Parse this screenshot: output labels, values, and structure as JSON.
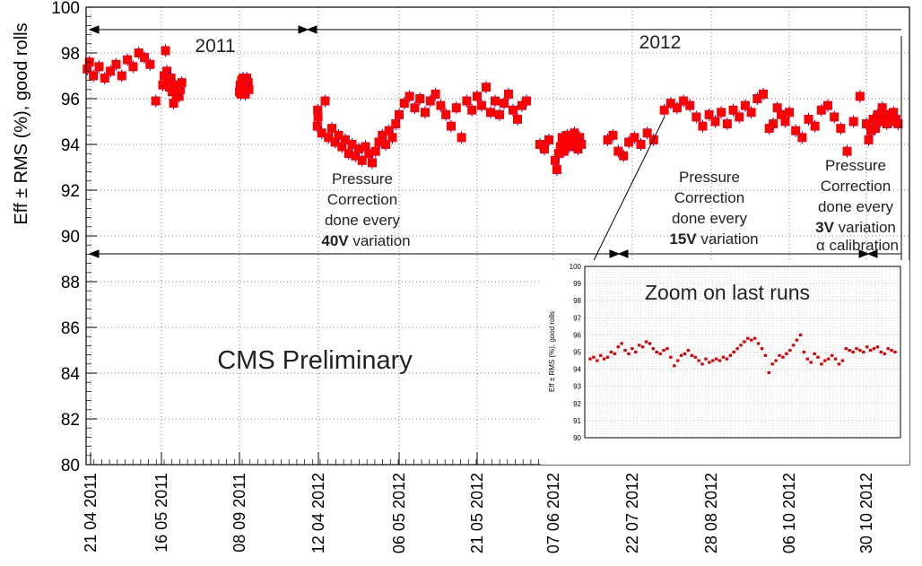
{
  "chart_data": {
    "type": "scatter",
    "title": "",
    "ylabel": "Eff ± RMS (%), good rolls",
    "xlabel": "",
    "ylim": [
      80,
      100
    ],
    "yticks": [
      80,
      82,
      84,
      86,
      88,
      90,
      92,
      94,
      96,
      98,
      100
    ],
    "x_is_date": true,
    "xlim": [
      "2011-04-17",
      "2012-12-07"
    ],
    "xtick_labels": [
      {
        "date": "2011-04-21",
        "label": "21 04 2011"
      },
      {
        "date": "2011-05-16",
        "label": "16 05 2011"
      },
      {
        "date": "2011-09-08",
        "label": "08 09 2011"
      },
      {
        "date": "2012-04-12",
        "label": "12 04 2012"
      },
      {
        "date": "2012-05-06",
        "label": "06 05 2012"
      },
      {
        "date": "2012-05-21",
        "label": "21 05 2012"
      },
      {
        "date": "2012-06-07",
        "label": "07 06 2012"
      },
      {
        "date": "2012-07-22",
        "label": "22 07 2012"
      },
      {
        "date": "2012-08-28",
        "label": "28 08 2012"
      },
      {
        "date": "2012-10-06",
        "label": "06 10 2012"
      },
      {
        "date": "2012-10-30",
        "label": "30 10 2012"
      }
    ],
    "grid": true,
    "marker_color": "#ff0000",
    "errorbar_color": "#0000ff",
    "series": [
      {
        "values": [
          {
            "x": "2011-04-18",
            "y": 97.3
          },
          {
            "x": "2011-04-20",
            "y": 97.6
          },
          {
            "x": "2011-04-22",
            "y": 97.0
          },
          {
            "x": "2011-04-24",
            "y": 97.4
          },
          {
            "x": "2011-04-26",
            "y": 96.9
          },
          {
            "x": "2011-04-28",
            "y": 97.2
          },
          {
            "x": "2011-04-30",
            "y": 97.5
          },
          {
            "x": "2011-05-02",
            "y": 97.0
          },
          {
            "x": "2011-05-04",
            "y": 97.7
          },
          {
            "x": "2011-05-06",
            "y": 97.4
          },
          {
            "x": "2011-05-08",
            "y": 98.0
          },
          {
            "x": "2011-05-10",
            "y": 97.8
          },
          {
            "x": "2011-05-12",
            "y": 97.5
          },
          {
            "x": "2011-05-14",
            "y": 95.9
          },
          {
            "x": "2011-05-18",
            "y": 96.6
          },
          {
            "x": "2011-05-20",
            "y": 97.0
          },
          {
            "x": "2011-05-22",
            "y": 98.1
          },
          {
            "x": "2011-05-24",
            "y": 97.2
          },
          {
            "x": "2011-05-26",
            "y": 96.9
          },
          {
            "x": "2011-05-28",
            "y": 96.5
          },
          {
            "x": "2011-05-30",
            "y": 96.9
          },
          {
            "x": "2011-06-01",
            "y": 96.3
          },
          {
            "x": "2011-06-03",
            "y": 95.8
          },
          {
            "x": "2011-06-05",
            "y": 96.6
          },
          {
            "x": "2011-06-07",
            "y": 96.2
          },
          {
            "x": "2011-06-09",
            "y": 96.5
          },
          {
            "x": "2011-06-11",
            "y": 96.1
          },
          {
            "x": "2011-06-13",
            "y": 96.4
          },
          {
            "x": "2011-06-15",
            "y": 96.7
          },
          {
            "x": "2011-09-08",
            "y": 96.3
          },
          {
            "x": "2011-09-10",
            "y": 96.6
          },
          {
            "x": "2011-09-12",
            "y": 96.2
          },
          {
            "x": "2011-09-14",
            "y": 96.8
          },
          {
            "x": "2011-09-16",
            "y": 96.5
          },
          {
            "x": "2011-09-18",
            "y": 96.9
          },
          {
            "x": "2011-09-20",
            "y": 96.4
          },
          {
            "x": "2011-09-22",
            "y": 96.7
          },
          {
            "x": "2011-09-24",
            "y": 96.2
          },
          {
            "x": "2011-09-26",
            "y": 96.6
          },
          {
            "x": "2011-09-28",
            "y": 96.9
          },
          {
            "x": "2011-09-30",
            "y": 96.5
          },
          {
            "x": "2011-10-02",
            "y": 96.7
          },
          {
            "x": "2011-10-04",
            "y": 96.4
          },
          {
            "x": "2012-04-09",
            "y": 94.8
          },
          {
            "x": "2012-04-10",
            "y": 95.5
          },
          {
            "x": "2012-04-11",
            "y": 95.2
          },
          {
            "x": "2012-04-13",
            "y": 94.5
          },
          {
            "x": "2012-04-14",
            "y": 95.9
          },
          {
            "x": "2012-04-15",
            "y": 94.3
          },
          {
            "x": "2012-04-16",
            "y": 94.7
          },
          {
            "x": "2012-04-17",
            "y": 94.1
          },
          {
            "x": "2012-04-18",
            "y": 94.4
          },
          {
            "x": "2012-04-19",
            "y": 93.9
          },
          {
            "x": "2012-04-20",
            "y": 94.2
          },
          {
            "x": "2012-04-21",
            "y": 93.6
          },
          {
            "x": "2012-04-22",
            "y": 94.0
          },
          {
            "x": "2012-04-23",
            "y": 93.5
          },
          {
            "x": "2012-04-24",
            "y": 93.8
          },
          {
            "x": "2012-04-25",
            "y": 93.3
          },
          {
            "x": "2012-04-26",
            "y": 93.9
          },
          {
            "x": "2012-04-27",
            "y": 93.6
          },
          {
            "x": "2012-04-28",
            "y": 93.2
          },
          {
            "x": "2012-04-29",
            "y": 93.7
          },
          {
            "x": "2012-04-30",
            "y": 94.1
          },
          {
            "x": "2012-05-01",
            "y": 94.4
          },
          {
            "x": "2012-05-02",
            "y": 94.0
          },
          {
            "x": "2012-05-03",
            "y": 94.6
          },
          {
            "x": "2012-05-04",
            "y": 94.3
          },
          {
            "x": "2012-05-05",
            "y": 94.9
          },
          {
            "x": "2012-05-06",
            "y": 95.3
          },
          {
            "x": "2012-05-07",
            "y": 95.8
          },
          {
            "x": "2012-05-08",
            "y": 96.1
          },
          {
            "x": "2012-05-09",
            "y": 95.6
          },
          {
            "x": "2012-05-10",
            "y": 96.0
          },
          {
            "x": "2012-05-11",
            "y": 95.4
          },
          {
            "x": "2012-05-12",
            "y": 95.9
          },
          {
            "x": "2012-05-13",
            "y": 96.2
          },
          {
            "x": "2012-05-14",
            "y": 95.7
          },
          {
            "x": "2012-05-15",
            "y": 95.3
          },
          {
            "x": "2012-05-16",
            "y": 94.8
          },
          {
            "x": "2012-05-17",
            "y": 95.6
          },
          {
            "x": "2012-05-18",
            "y": 94.3
          },
          {
            "x": "2012-05-19",
            "y": 95.9
          },
          {
            "x": "2012-05-20",
            "y": 95.5
          },
          {
            "x": "2012-05-21",
            "y": 96.1
          },
          {
            "x": "2012-05-22",
            "y": 95.7
          },
          {
            "x": "2012-05-23",
            "y": 96.5
          },
          {
            "x": "2012-05-24",
            "y": 95.4
          },
          {
            "x": "2012-05-25",
            "y": 95.9
          },
          {
            "x": "2012-05-26",
            "y": 95.3
          },
          {
            "x": "2012-05-27",
            "y": 95.8
          },
          {
            "x": "2012-05-28",
            "y": 96.2
          },
          {
            "x": "2012-05-29",
            "y": 95.5
          },
          {
            "x": "2012-05-30",
            "y": 95.1
          },
          {
            "x": "2012-05-31",
            "y": 95.7
          },
          {
            "x": "2012-06-01",
            "y": 95.9
          },
          {
            "x": "2012-06-04",
            "y": 94.0
          },
          {
            "x": "2012-06-05",
            "y": 93.8
          },
          {
            "x": "2012-06-06",
            "y": 94.2
          },
          {
            "x": "2012-06-08",
            "y": 93.3
          },
          {
            "x": "2012-06-09",
            "y": 92.9
          },
          {
            "x": "2012-06-10",
            "y": 93.6
          },
          {
            "x": "2012-06-11",
            "y": 93.9
          },
          {
            "x": "2012-06-12",
            "y": 94.3
          },
          {
            "x": "2012-06-13",
            "y": 93.7
          },
          {
            "x": "2012-06-14",
            "y": 94.1
          },
          {
            "x": "2012-06-15",
            "y": 94.4
          },
          {
            "x": "2012-06-16",
            "y": 93.9
          },
          {
            "x": "2012-06-17",
            "y": 94.2
          },
          {
            "x": "2012-06-18",
            "y": 94.0
          },
          {
            "x": "2012-06-19",
            "y": 94.5
          },
          {
            "x": "2012-06-20",
            "y": 94.1
          },
          {
            "x": "2012-06-21",
            "y": 93.8
          },
          {
            "x": "2012-06-22",
            "y": 94.3
          },
          {
            "x": "2012-06-23",
            "y": 94.0
          },
          {
            "x": "2012-07-08",
            "y": 94.2
          },
          {
            "x": "2012-07-11",
            "y": 94.4
          },
          {
            "x": "2012-07-14",
            "y": 93.7
          },
          {
            "x": "2012-07-17",
            "y": 93.5
          },
          {
            "x": "2012-07-20",
            "y": 94.1
          },
          {
            "x": "2012-07-23",
            "y": 94.3
          },
          {
            "x": "2012-07-26",
            "y": 94.0
          },
          {
            "x": "2012-07-29",
            "y": 94.5
          },
          {
            "x": "2012-08-01",
            "y": 94.2
          },
          {
            "x": "2012-08-06",
            "y": 95.5
          },
          {
            "x": "2012-08-09",
            "y": 95.8
          },
          {
            "x": "2012-08-12",
            "y": 95.6
          },
          {
            "x": "2012-08-15",
            "y": 95.9
          },
          {
            "x": "2012-08-18",
            "y": 95.7
          },
          {
            "x": "2012-08-21",
            "y": 95.2
          },
          {
            "x": "2012-08-24",
            "y": 94.8
          },
          {
            "x": "2012-08-27",
            "y": 95.3
          },
          {
            "x": "2012-08-30",
            "y": 95.0
          },
          {
            "x": "2012-09-02",
            "y": 95.4
          },
          {
            "x": "2012-09-05",
            "y": 94.9
          },
          {
            "x": "2012-09-08",
            "y": 95.5
          },
          {
            "x": "2012-09-11",
            "y": 95.2
          },
          {
            "x": "2012-09-14",
            "y": 95.7
          },
          {
            "x": "2012-09-17",
            "y": 95.4
          },
          {
            "x": "2012-09-20",
            "y": 96.0
          },
          {
            "x": "2012-09-23",
            "y": 96.2
          },
          {
            "x": "2012-09-26",
            "y": 94.7
          },
          {
            "x": "2012-09-28",
            "y": 94.9
          },
          {
            "x": "2012-09-30",
            "y": 95.6
          },
          {
            "x": "2012-10-02",
            "y": 95.3
          },
          {
            "x": "2012-10-04",
            "y": 95.0
          },
          {
            "x": "2012-10-06",
            "y": 95.4
          },
          {
            "x": "2012-10-08",
            "y": 94.6
          },
          {
            "x": "2012-10-10",
            "y": 94.3
          },
          {
            "x": "2012-10-12",
            "y": 95.1
          },
          {
            "x": "2012-10-14",
            "y": 94.8
          },
          {
            "x": "2012-10-16",
            "y": 95.5
          },
          {
            "x": "2012-10-18",
            "y": 95.7
          },
          {
            "x": "2012-10-20",
            "y": 95.2
          },
          {
            "x": "2012-10-22",
            "y": 94.7
          },
          {
            "x": "2012-10-24",
            "y": 93.7
          },
          {
            "x": "2012-10-26",
            "y": 95.0
          },
          {
            "x": "2012-10-28",
            "y": 96.1
          },
          {
            "x": "2012-10-30",
            "y": 94.9
          },
          {
            "x": "2012-11-01",
            "y": 94.2
          },
          {
            "x": "2012-11-03",
            "y": 94.6
          },
          {
            "x": "2012-11-05",
            "y": 95.1
          },
          {
            "x": "2012-11-07",
            "y": 94.7
          },
          {
            "x": "2012-11-09",
            "y": 95.3
          },
          {
            "x": "2012-11-11",
            "y": 95.0
          },
          {
            "x": "2012-11-13",
            "y": 95.6
          },
          {
            "x": "2012-11-15",
            "y": 95.2
          },
          {
            "x": "2012-11-17",
            "y": 94.9
          },
          {
            "x": "2012-11-19",
            "y": 95.3
          },
          {
            "x": "2012-11-21",
            "y": 95.0
          },
          {
            "x": "2012-11-23",
            "y": 95.4
          },
          {
            "x": "2012-11-25",
            "y": 95.1
          },
          {
            "x": "2012-11-27",
            "y": 94.9
          }
        ]
      }
    ],
    "annotations": {
      "year_2011": "2011",
      "year_2012": "2012",
      "period1_line1": "Pressure",
      "period1_line2": "Correction",
      "period1_line3": "done every",
      "period1_bold": "40V",
      "period1_suffix": " variation",
      "period2_line1": "Pressure",
      "period2_line2": "Correction",
      "period2_line3": "done every",
      "period2_bold": "15V",
      "period2_suffix": " variation",
      "period3_line1": "Pressure",
      "period3_line2": "Correction",
      "period3_line3": "done every",
      "period3_bold": "3V",
      "period3_suffix": " variation",
      "period3_line5": "α calibration",
      "preliminary": "CMS Preliminary"
    },
    "inset": {
      "title": "Zoom on last runs",
      "ylabel": "Eff ± RMS (%), good rolls",
      "ylim": [
        90,
        100
      ],
      "yticks": [
        90,
        91,
        92,
        93,
        94,
        95,
        96,
        97,
        98,
        99,
        100
      ],
      "values": [
        94.6,
        94.7,
        94.5,
        94.8,
        94.6,
        94.7,
        95.0,
        94.9,
        95.3,
        95.5,
        95.1,
        94.9,
        95.2,
        95.0,
        95.4,
        95.3,
        95.6,
        95.5,
        95.2,
        95.0,
        94.9,
        95.1,
        95.2,
        94.7,
        94.2,
        94.5,
        94.8,
        94.9,
        95.1,
        94.8,
        94.7,
        94.5,
        94.3,
        94.6,
        94.4,
        94.5,
        94.6,
        94.5,
        94.7,
        94.6,
        94.8,
        95.0,
        95.2,
        95.4,
        95.6,
        95.8,
        95.7,
        95.8,
        95.5,
        95.2,
        94.8,
        93.8,
        94.3,
        94.5,
        94.8,
        94.7,
        94.9,
        95.1,
        95.4,
        95.7,
        96.0,
        95.0,
        94.6,
        94.4,
        94.9,
        94.7,
        94.3,
        94.5,
        94.6,
        94.8,
        94.6,
        94.3,
        94.5,
        95.2,
        95.1,
        95.0,
        95.2,
        95.1,
        95.0,
        95.3,
        95.1,
        95.2,
        95.3,
        95.0,
        94.9,
        95.2,
        95.1,
        95.0
      ]
    }
  }
}
